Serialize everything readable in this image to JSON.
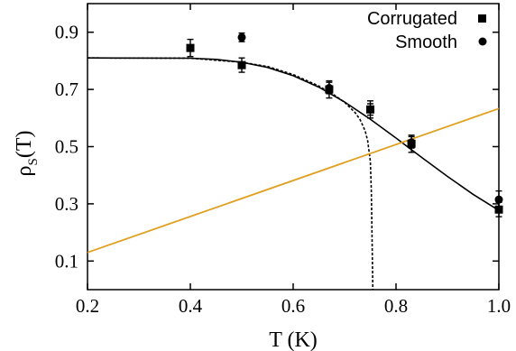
{
  "chart_data": {
    "type": "scatter",
    "xlabel": "T (K)",
    "ylabel_main": "ρ",
    "ylabel_sub": "S",
    "ylabel_tail": "(T)",
    "xlim": [
      0.2,
      1.0
    ],
    "ylim": [
      0.0,
      1.0
    ],
    "x_ticks": [
      0.2,
      0.4,
      0.6,
      0.8,
      1.0
    ],
    "x_tick_labels": [
      "0.2",
      "0.4",
      "0.6",
      "0.8",
      "1.0"
    ],
    "y_ticks": [
      0.1,
      0.3,
      0.5,
      0.7,
      0.9
    ],
    "y_tick_labels": [
      "0.1",
      "0.3",
      "0.5",
      "0.7",
      "0.9"
    ],
    "grid": false,
    "legend_position": "top-right",
    "series": [
      {
        "name": "Corrugated",
        "marker": "square",
        "color": "#000000",
        "points": [
          {
            "x": 0.4,
            "y": 0.845,
            "err": 0.03
          },
          {
            "x": 0.5,
            "y": 0.785,
            "err": 0.025
          },
          {
            "x": 0.67,
            "y": 0.7,
            "err": 0.03
          },
          {
            "x": 0.75,
            "y": 0.63,
            "err": 0.03
          },
          {
            "x": 0.83,
            "y": 0.51,
            "err": 0.03
          },
          {
            "x": 1.0,
            "y": 0.28,
            "err": 0.025
          }
        ]
      },
      {
        "name": "Smooth",
        "marker": "circle",
        "color": "#000000",
        "points": [
          {
            "x": 0.5,
            "y": 0.882,
            "err": 0.015
          },
          {
            "x": 0.67,
            "y": 0.705,
            "err": 0.02
          },
          {
            "x": 0.75,
            "y": 0.63,
            "err": 0.02
          },
          {
            "x": 0.83,
            "y": 0.515,
            "err": 0.02
          },
          {
            "x": 1.0,
            "y": 0.315,
            "err": 0.03
          }
        ]
      }
    ],
    "curves": [
      {
        "id": "solid-fit",
        "style": "solid",
        "color": "#000000",
        "x": [
          0.2,
          0.4,
          0.45,
          0.5,
          0.55,
          0.6,
          0.65,
          0.7,
          0.75,
          0.8,
          0.85,
          0.9,
          0.95,
          1.0
        ],
        "y": [
          0.81,
          0.809,
          0.805,
          0.795,
          0.777,
          0.748,
          0.708,
          0.656,
          0.596,
          0.53,
          0.462,
          0.396,
          0.333,
          0.277
        ]
      },
      {
        "id": "dashed-fit",
        "style": "dashed",
        "color": "#000000",
        "x": [
          0.2,
          0.4,
          0.5,
          0.55,
          0.6,
          0.65,
          0.68,
          0.7,
          0.72,
          0.73,
          0.74,
          0.745,
          0.75,
          0.752,
          0.755
        ],
        "y": [
          0.81,
          0.809,
          0.795,
          0.78,
          0.752,
          0.712,
          0.68,
          0.655,
          0.62,
          0.595,
          0.555,
          0.52,
          0.45,
          0.35,
          0.0
        ]
      },
      {
        "id": "linear-line",
        "style": "solid",
        "color": "#e0a020",
        "x": [
          0.2,
          1.0
        ],
        "y": [
          0.13,
          0.633
        ]
      }
    ]
  }
}
